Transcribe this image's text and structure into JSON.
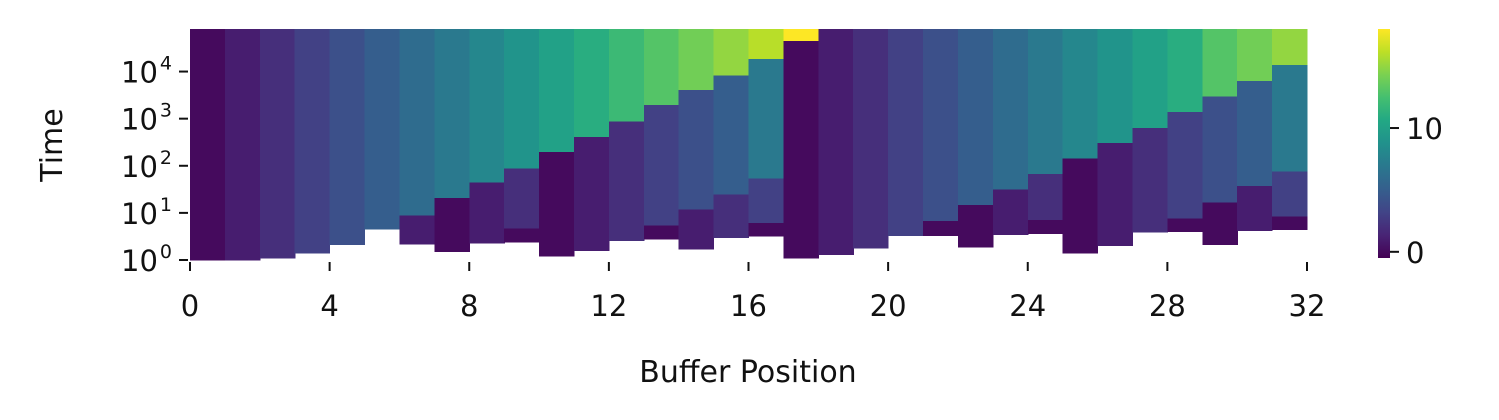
{
  "chart_data": {
    "type": "heatmap",
    "title": "",
    "xlabel": "Buffer Position",
    "ylabel": "Time",
    "x_ticks": [
      "0",
      "4",
      "8",
      "12",
      "16",
      "20",
      "24",
      "28",
      "32"
    ],
    "y_scale": "log",
    "y_ticks": [
      {
        "base": "10",
        "exp": "0"
      },
      {
        "base": "10",
        "exp": "1"
      },
      {
        "base": "10",
        "exp": "2"
      },
      {
        "base": "10",
        "exp": "3"
      },
      {
        "base": "10",
        "exp": "4"
      }
    ],
    "xlim": [
      0,
      32
    ],
    "ylim": [
      1,
      80000
    ],
    "colormap": "viridis",
    "colorbar_ticks": [
      "0",
      "10"
    ],
    "colorbar_range": [
      -0.5,
      18
    ],
    "grid": false,
    "columns": [
      {
        "x": 0,
        "cells": [
          {
            "t0": 1,
            "t1": 80000,
            "v": 0
          }
        ]
      },
      {
        "x": 1,
        "cells": [
          {
            "t0": 1,
            "t1": 80000,
            "v": 1
          }
        ]
      },
      {
        "x": 2,
        "cells": [
          {
            "t0": 1.1,
            "t1": 80000,
            "v": 2
          }
        ]
      },
      {
        "x": 3,
        "cells": [
          {
            "t0": 1.4,
            "t1": 80000,
            "v": 3
          }
        ]
      },
      {
        "x": 4,
        "cells": [
          {
            "t0": 2.1,
            "t1": 80000,
            "v": 4
          }
        ]
      },
      {
        "x": 5,
        "cells": [
          {
            "t0": 4.5,
            "t1": 80000,
            "v": 5
          }
        ]
      },
      {
        "x": 6,
        "cells": [
          {
            "t0": 2.2,
            "t1": 9,
            "v": 1
          },
          {
            "t0": 9,
            "t1": 80000,
            "v": 6
          }
        ]
      },
      {
        "x": 7,
        "cells": [
          {
            "t0": 1.5,
            "t1": 21,
            "v": 0
          },
          {
            "t0": 21,
            "t1": 80000,
            "v": 7
          }
        ]
      },
      {
        "x": 8,
        "cells": [
          {
            "t0": 2.3,
            "t1": 45,
            "v": 1
          },
          {
            "t0": 45,
            "t1": 80000,
            "v": 8
          }
        ]
      },
      {
        "x": 9,
        "cells": [
          {
            "t0": 2.4,
            "t1": 4.8,
            "v": 0
          },
          {
            "t0": 4.8,
            "t1": 90,
            "v": 2
          },
          {
            "t0": 90,
            "t1": 80000,
            "v": 9
          }
        ]
      },
      {
        "x": 10,
        "cells": [
          {
            "t0": 1.2,
            "t1": 200,
            "v": 0
          },
          {
            "t0": 200,
            "t1": 80000,
            "v": 10
          }
        ]
      },
      {
        "x": 11,
        "cells": [
          {
            "t0": 1.6,
            "t1": 420,
            "v": 1
          },
          {
            "t0": 420,
            "t1": 80000,
            "v": 11
          }
        ]
      },
      {
        "x": 12,
        "cells": [
          {
            "t0": 2.6,
            "t1": 880,
            "v": 2
          },
          {
            "t0": 880,
            "t1": 80000,
            "v": 12
          }
        ]
      },
      {
        "x": 13,
        "cells": [
          {
            "t0": 2.8,
            "t1": 5.5,
            "v": 0
          },
          {
            "t0": 5.5,
            "t1": 2000,
            "v": 3
          },
          {
            "t0": 2000,
            "t1": 80000,
            "v": 13
          }
        ]
      },
      {
        "x": 14,
        "cells": [
          {
            "t0": 1.7,
            "t1": 12,
            "v": 1
          },
          {
            "t0": 12,
            "t1": 4100,
            "v": 4
          },
          {
            "t0": 4100,
            "t1": 80000,
            "v": 14
          }
        ]
      },
      {
        "x": 15,
        "cells": [
          {
            "t0": 3,
            "t1": 25,
            "v": 2
          },
          {
            "t0": 25,
            "t1": 8500,
            "v": 5
          },
          {
            "t0": 8500,
            "t1": 80000,
            "v": 15
          }
        ]
      },
      {
        "x": 16,
        "cells": [
          {
            "t0": 3.2,
            "t1": 6.2,
            "v": 0
          },
          {
            "t0": 6.2,
            "t1": 55,
            "v": 3
          },
          {
            "t0": 55,
            "t1": 19000,
            "v": 7
          },
          {
            "t0": 19000,
            "t1": 80000,
            "v": 16
          }
        ]
      },
      {
        "x": 17,
        "cells": [
          {
            "t0": 1.1,
            "t1": 45000,
            "v": 0
          },
          {
            "t0": 45000,
            "t1": 80000,
            "v": 18
          }
        ]
      },
      {
        "x": 18,
        "cells": [
          {
            "t0": 1.3,
            "t1": 80000,
            "v": 1
          }
        ]
      },
      {
        "x": 19,
        "cells": [
          {
            "t0": 1.8,
            "t1": 80000,
            "v": 2
          }
        ]
      },
      {
        "x": 20,
        "cells": [
          {
            "t0": 3.3,
            "t1": 80000,
            "v": 3
          }
        ]
      },
      {
        "x": 21,
        "cells": [
          {
            "t0": 3.3,
            "t1": 6.8,
            "v": 0
          },
          {
            "t0": 6.8,
            "t1": 80000,
            "v": 4
          }
        ]
      },
      {
        "x": 22,
        "cells": [
          {
            "t0": 1.9,
            "t1": 15,
            "v": 0
          },
          {
            "t0": 15,
            "t1": 80000,
            "v": 5
          }
        ]
      },
      {
        "x": 23,
        "cells": [
          {
            "t0": 3.5,
            "t1": 32,
            "v": 1
          },
          {
            "t0": 32,
            "t1": 80000,
            "v": 6
          }
        ]
      },
      {
        "x": 24,
        "cells": [
          {
            "t0": 3.6,
            "t1": 7.2,
            "v": 0
          },
          {
            "t0": 7.2,
            "t1": 68,
            "v": 2
          },
          {
            "t0": 68,
            "t1": 80000,
            "v": 7
          }
        ]
      },
      {
        "x": 25,
        "cells": [
          {
            "t0": 1.4,
            "t1": 145,
            "v": 0
          },
          {
            "t0": 145,
            "t1": 80000,
            "v": 8
          }
        ]
      },
      {
        "x": 26,
        "cells": [
          {
            "t0": 2,
            "t1": 310,
            "v": 1
          },
          {
            "t0": 310,
            "t1": 80000,
            "v": 9
          }
        ]
      },
      {
        "x": 27,
        "cells": [
          {
            "t0": 3.9,
            "t1": 650,
            "v": 2
          },
          {
            "t0": 650,
            "t1": 80000,
            "v": 10
          }
        ]
      },
      {
        "x": 28,
        "cells": [
          {
            "t0": 4,
            "t1": 7.8,
            "v": 0
          },
          {
            "t0": 7.8,
            "t1": 1400,
            "v": 3
          },
          {
            "t0": 1400,
            "t1": 80000,
            "v": 11
          }
        ]
      },
      {
        "x": 29,
        "cells": [
          {
            "t0": 2.1,
            "t1": 17,
            "v": 0
          },
          {
            "t0": 17,
            "t1": 3000,
            "v": 4
          },
          {
            "t0": 3000,
            "t1": 80000,
            "v": 13
          }
        ]
      },
      {
        "x": 30,
        "cells": [
          {
            "t0": 4.2,
            "t1": 38,
            "v": 1
          },
          {
            "t0": 38,
            "t1": 6500,
            "v": 5
          },
          {
            "t0": 6500,
            "t1": 80000,
            "v": 14
          }
        ]
      },
      {
        "x": 31,
        "cells": [
          {
            "t0": 4.4,
            "t1": 8.5,
            "v": 0
          },
          {
            "t0": 8.5,
            "t1": 78,
            "v": 3
          },
          {
            "t0": 78,
            "t1": 14000,
            "v": 7
          },
          {
            "t0": 14000,
            "t1": 80000,
            "v": 15
          }
        ]
      }
    ]
  }
}
